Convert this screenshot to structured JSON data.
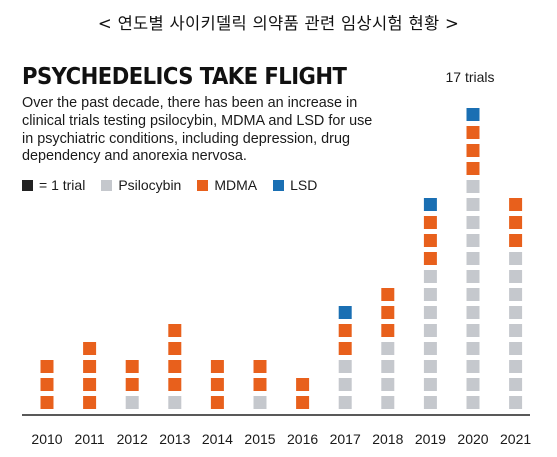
{
  "header": {
    "korean_title": "< 연도별 사이키델릭 의약품 관련 임상시험 현황 >"
  },
  "chart_data": {
    "type": "bar",
    "stacked": true,
    "title": "PSYCHEDELICS TAKE FLIGHT",
    "subtitle": "Over the past decade, there has been an increase in clinical trials testing psilocybin, MDMA and LSD for use in psychiatric conditions, including depression, drug dependency and anorexia nervosa.",
    "unit_legend": "= 1 trial",
    "legend_placement": "top-left",
    "grid": false,
    "categories": [
      "2010",
      "2011",
      "2012",
      "2013",
      "2014",
      "2015",
      "2016",
      "2017",
      "2018",
      "2019",
      "2020",
      "2021"
    ],
    "series": [
      {
        "name": "Psilocybin",
        "color": "#c5c8cd",
        "values": [
          0,
          0,
          1,
          1,
          0,
          1,
          0,
          3,
          4,
          8,
          13,
          9
        ]
      },
      {
        "name": "MDMA",
        "color": "#e8601c",
        "values": [
          3,
          4,
          2,
          4,
          3,
          2,
          2,
          2,
          3,
          3,
          3,
          3
        ]
      },
      {
        "name": "LSD",
        "color": "#1a6fb3",
        "values": [
          0,
          0,
          0,
          0,
          0,
          0,
          0,
          1,
          0,
          1,
          1,
          0
        ]
      }
    ],
    "unit_color": "#222222",
    "annotations": [
      {
        "category": "2020",
        "text": "17 trials"
      }
    ]
  }
}
